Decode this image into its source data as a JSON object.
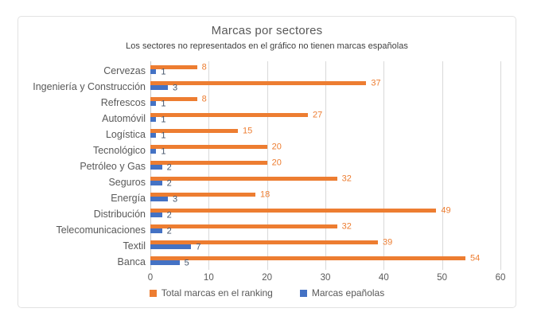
{
  "chart": {
    "title": "Marcas por sectores",
    "subtitle": "Los sectores no representados en el gráfico no tienen marcas españolas"
  },
  "chart_data": {
    "type": "bar",
    "orientation": "horizontal",
    "title": "Marcas por sectores",
    "subtitle": "Los sectores no representados en el gráfico no tienen marcas españolas",
    "categories": [
      "Cervezas",
      "Ingeniería y Construcción",
      "Refrescos",
      "Automóvil",
      "Logística",
      "Tecnológico",
      "Petróleo y Gas",
      "Seguros",
      "Energía",
      "Distribución",
      "Telecomunicaciones",
      "Textil",
      "Banca"
    ],
    "series": [
      {
        "name": "Total marcas en el ranking",
        "color": "#ED7D31",
        "label_color": "#ED7D31",
        "values": [
          8,
          37,
          8,
          27,
          15,
          20,
          20,
          32,
          18,
          49,
          32,
          39,
          54
        ]
      },
      {
        "name": "Marcas epañolas",
        "color": "#4472C4",
        "label_color": "#44546A",
        "values": [
          1,
          3,
          1,
          1,
          1,
          1,
          2,
          2,
          3,
          2,
          2,
          7,
          5
        ]
      }
    ],
    "xlabel": "",
    "ylabel": "",
    "xlim": [
      0,
      60
    ],
    "xticks": [
      0,
      10,
      20,
      30,
      40,
      50,
      60
    ],
    "grid": true,
    "data_labels": true,
    "legend_position": "bottom"
  },
  "colors": {
    "grid": "#D9D9D9",
    "axis_text": "#595959",
    "category_text": "#595959",
    "title_text": "#595959",
    "frame_border": "#E2E2E2",
    "background": "#FFFFFF"
  }
}
